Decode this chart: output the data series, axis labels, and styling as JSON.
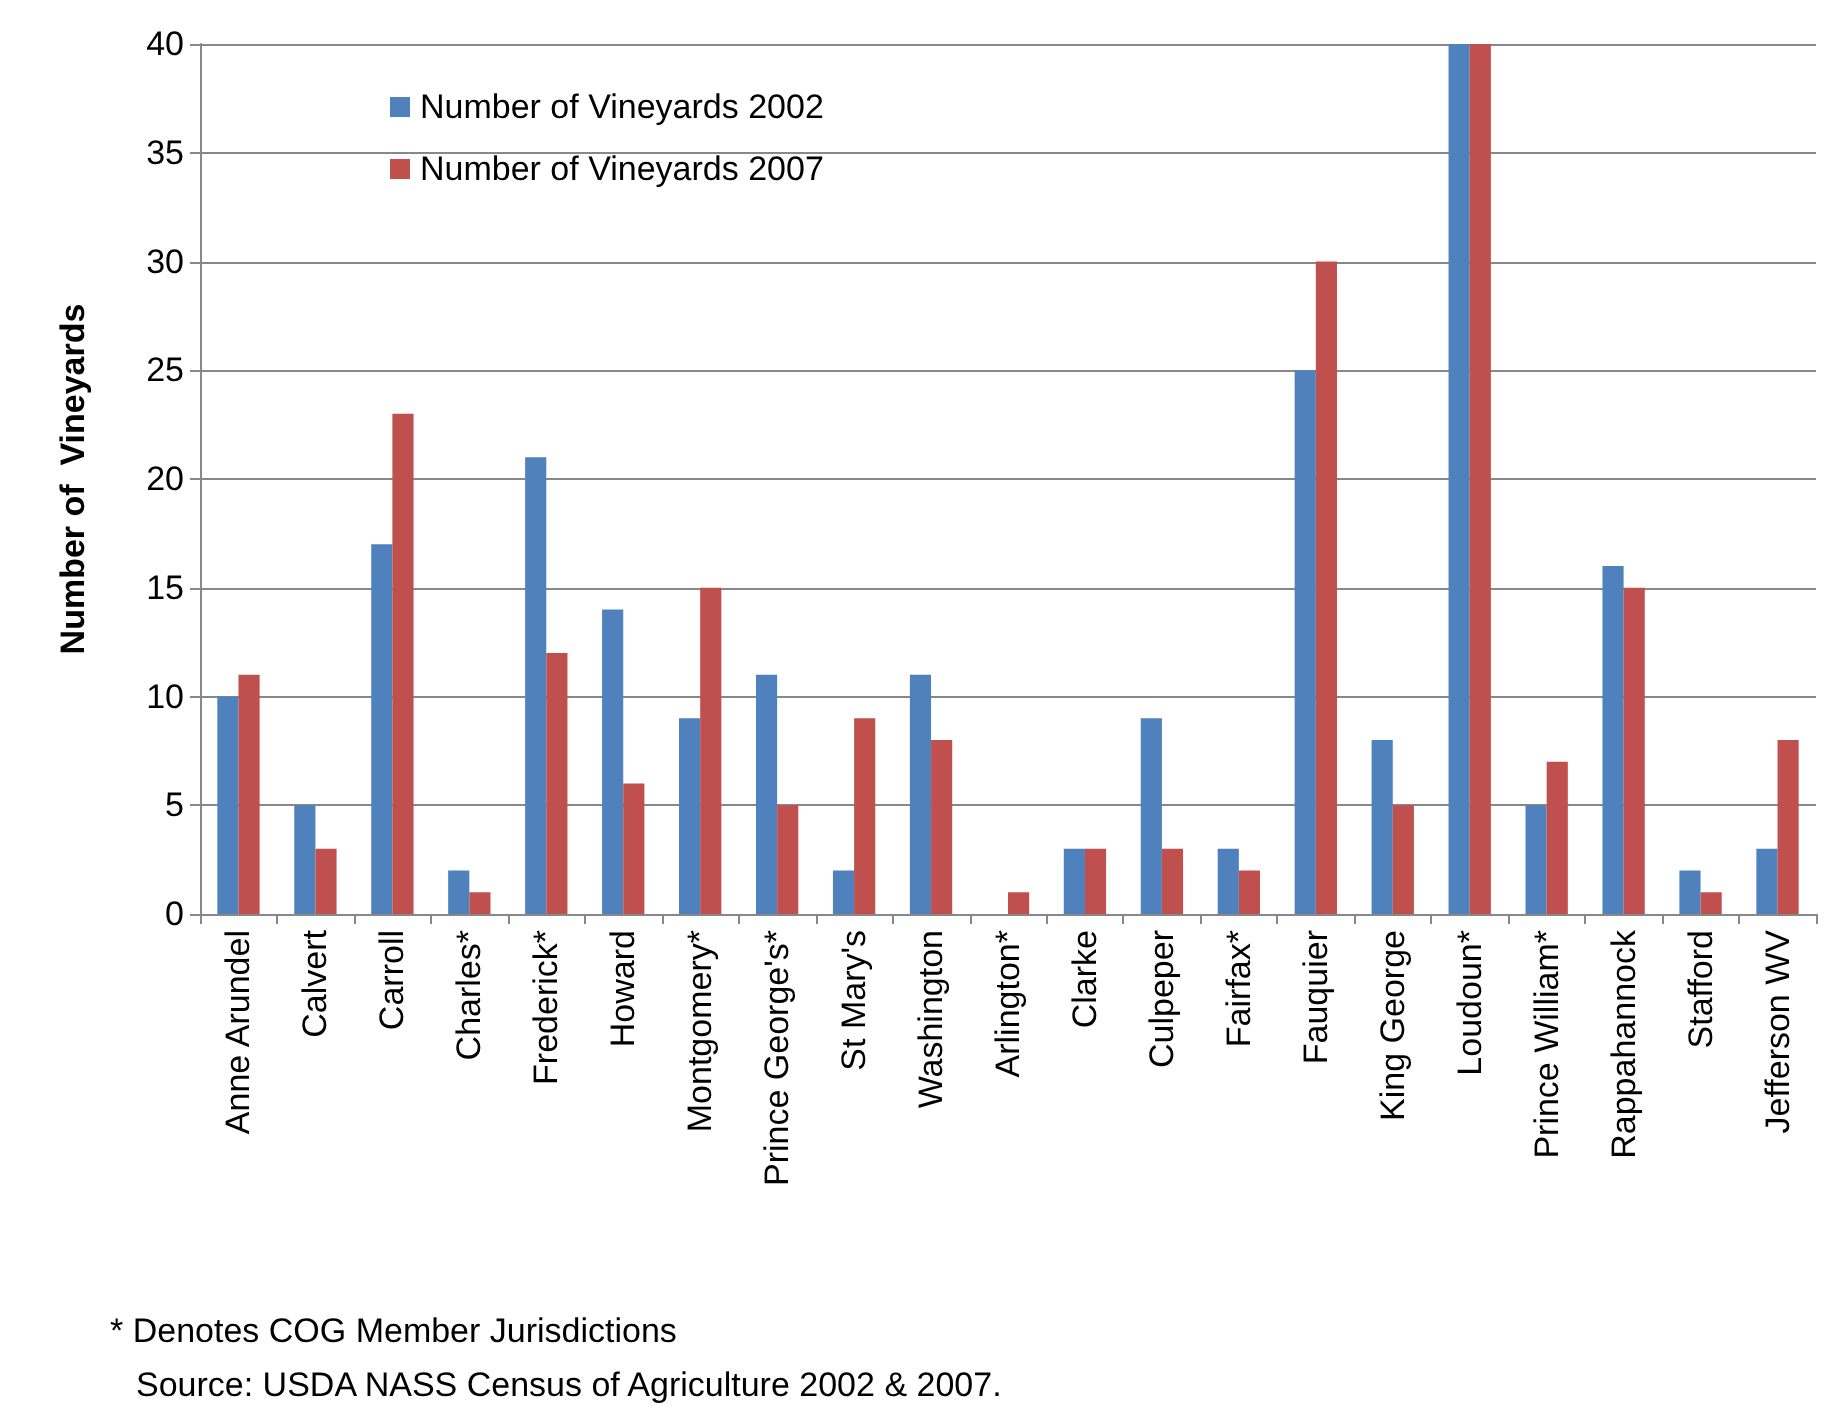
{
  "chart_data": {
    "type": "bar",
    "ylabel": "Number of  Vineyards",
    "categories": [
      "Anne Arundel",
      "Calvert",
      "Carroll",
      "Charles*",
      "Frederick*",
      "Howard",
      "Montgomery*",
      "Prince George's*",
      "St Mary's",
      "Washington",
      "Arlington*",
      "Clarke",
      "Culpeper",
      "Fairfax*",
      "Fauquier",
      "King George",
      "Loudoun*",
      "Prince William*",
      "Rappahannock",
      "Stafford",
      "Jefferson WV"
    ],
    "series": [
      {
        "name": "Number of Vineyards 2002",
        "color": "#4f81bd",
        "values": [
          10,
          5,
          17,
          2,
          21,
          14,
          9,
          11,
          2,
          11,
          0,
          3,
          9,
          3,
          25,
          8,
          40,
          5,
          16,
          2,
          3
        ]
      },
      {
        "name": "Number of Vineyards 2007",
        "color": "#c0504d",
        "values": [
          11,
          3,
          23,
          1,
          12,
          6,
          15,
          5,
          9,
          8,
          1,
          3,
          3,
          2,
          30,
          5,
          40,
          7,
          15,
          1,
          8
        ]
      }
    ],
    "ylim": [
      0,
      40
    ],
    "yticks": [
      0,
      5,
      10,
      15,
      20,
      25,
      30,
      35,
      40
    ],
    "grid": "y",
    "legend": "top left",
    "annotations": [
      "* Denotes COG Member Jurisdictions",
      "Source: USDA NASS Census of Agriculture 2002 & 2007."
    ]
  }
}
